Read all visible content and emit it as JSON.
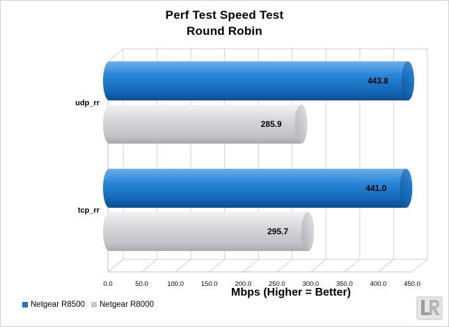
{
  "chart_data": {
    "type": "bar",
    "orientation": "horizontal",
    "title": "Perf Test Speed Test",
    "subtitle": "Round Robin",
    "xlabel": "Mbps (Higher = Better)",
    "ylabel": "",
    "categories": [
      "udp_rr",
      "tcp_rr"
    ],
    "series": [
      {
        "name": "Netgear R8500",
        "color": "#1a74c8",
        "values": [
          443.8,
          441.0
        ]
      },
      {
        "name": "Netgear R8000",
        "color": "#cfd0d4",
        "values": [
          285.9,
          295.7
        ]
      }
    ],
    "value_labels": {
      "Netgear R8500": [
        "443.8",
        "441.0"
      ],
      "Netgear R8000": [
        "285.9",
        "295.7"
      ]
    },
    "xlim": [
      0,
      450
    ],
    "xticks": [
      "0.0",
      "50.0",
      "100.0",
      "150.0",
      "200.0",
      "250.0",
      "300.0",
      "350.0",
      "400.0",
      "450.0"
    ],
    "grid": true,
    "legend_position": "bottom-left"
  },
  "logo": {
    "icon": "legit-reviews-logo-icon"
  }
}
